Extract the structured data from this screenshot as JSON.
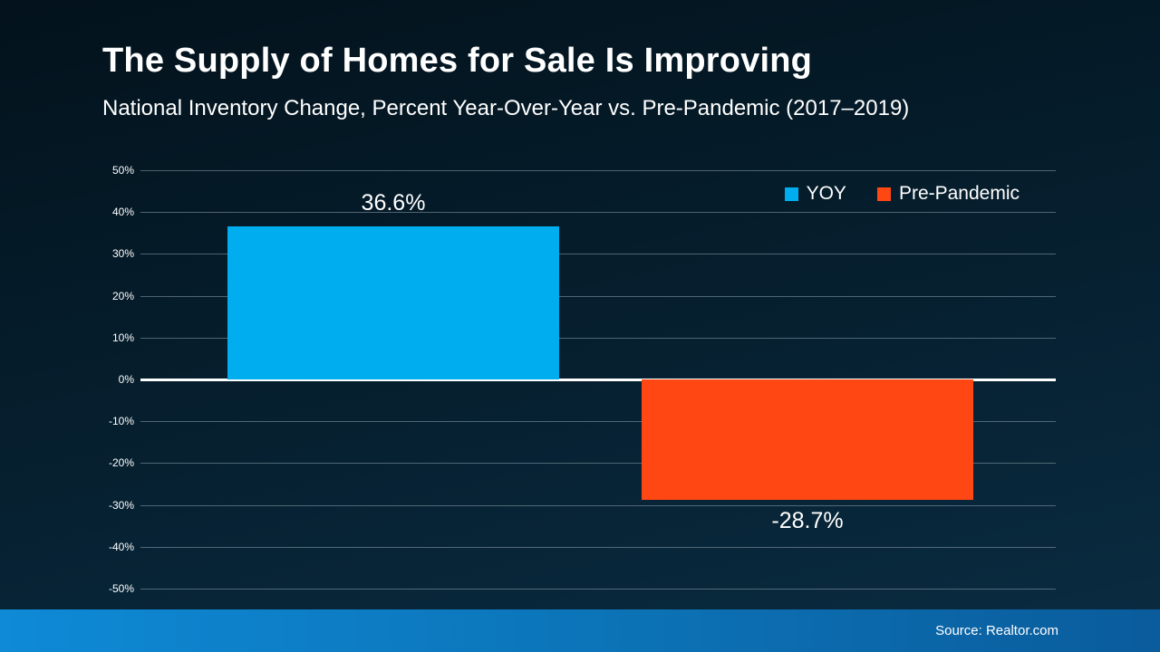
{
  "slide": {
    "title": "The Supply of Homes for Sale Is Improving",
    "subtitle": "National Inventory Change, Percent Year-Over-Year vs. Pre-Pandemic (2017–2019)",
    "source": "Source: Realtor.com"
  },
  "colors": {
    "yoy_bar": "#00AEEF",
    "pre_pandemic_bar": "#FF4713",
    "zero_line": "#FFFFFF",
    "gridline": "#8CA0AC",
    "footer_left": "#0E8AD6",
    "footer_right": "#0A5C9C",
    "background": "#062030",
    "text": "#FFFFFF"
  },
  "chart_data": {
    "type": "bar",
    "title": "The Supply of Homes for Sale Is Improving",
    "subtitle": "National Inventory Change, Percent Year-Over-Year vs. Pre-Pandemic (2017–2019)",
    "categories": [
      "YOY",
      "Pre-Pandemic"
    ],
    "values": [
      36.6,
      -28.7
    ],
    "value_labels": [
      "36.6%",
      "-28.7%"
    ],
    "xlabel": "",
    "ylabel": "",
    "ylim": [
      -50,
      50
    ],
    "ytick_step": 10,
    "yticks": [
      "50%",
      "40%",
      "30%",
      "20%",
      "10%",
      "0%",
      "-10%",
      "-20%",
      "-30%",
      "-40%",
      "-50%"
    ],
    "grid": true,
    "legend_position": "top-right",
    "legend": [
      {
        "label": "YOY",
        "color": "#00AEEF"
      },
      {
        "label": "Pre-Pandemic",
        "color": "#FF4713"
      }
    ],
    "source": "Source: Realtor.com"
  }
}
